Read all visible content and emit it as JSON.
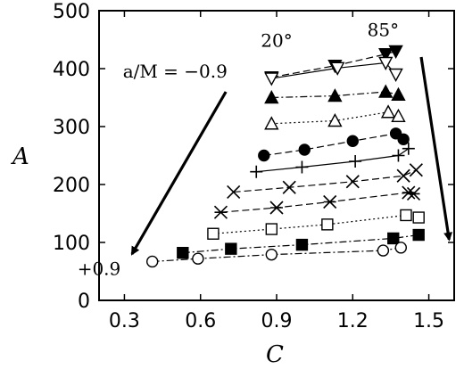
{
  "chart_data": {
    "type": "line",
    "title": "",
    "xlabel": "C",
    "ylabel": "A",
    "xlim": [
      0.2,
      1.6
    ],
    "ylim": [
      0,
      500
    ],
    "xticks": [
      0.3,
      0.6,
      0.9,
      1.2,
      1.5
    ],
    "xtick_labels": [
      "0.3",
      "0.6",
      "0.9",
      "1.2",
      "1.5"
    ],
    "yticks": [
      0,
      100,
      200,
      300,
      400,
      500
    ],
    "ytick_labels": [
      "0",
      "100",
      "200",
      "300",
      "400",
      "500"
    ],
    "grid": false,
    "legend": "none",
    "series": [
      {
        "marker": "triangle-down-filled",
        "line": "dashed",
        "x": [
          0.88,
          1.13,
          1.33,
          1.37
        ],
        "y": [
          385,
          405,
          425,
          430
        ]
      },
      {
        "marker": "triangle-down-open",
        "line": "solid",
        "x": [
          0.88,
          1.14,
          1.33,
          1.37
        ],
        "y": [
          383,
          401,
          410,
          390
        ]
      },
      {
        "marker": "triangle-up-filled",
        "line": "dash-dot",
        "x": [
          0.88,
          1.13,
          1.33,
          1.38
        ],
        "y": [
          350,
          353,
          360,
          355
        ]
      },
      {
        "marker": "triangle-up-open",
        "line": "dotted",
        "x": [
          0.88,
          1.13,
          1.34,
          1.38
        ],
        "y": [
          305,
          310,
          325,
          318
        ]
      },
      {
        "marker": "circle-filled",
        "line": "dashed",
        "x": [
          0.85,
          1.01,
          1.2,
          1.37,
          1.4
        ],
        "y": [
          250,
          260,
          275,
          288,
          278
        ]
      },
      {
        "marker": "plus",
        "line": "solid",
        "x": [
          0.82,
          1.0,
          1.21,
          1.38,
          1.42
        ],
        "y": [
          222,
          230,
          240,
          250,
          262
        ]
      },
      {
        "marker": "x",
        "line": "dashed",
        "x": [
          0.73,
          0.95,
          1.2,
          1.4,
          1.45
        ],
        "y": [
          187,
          195,
          205,
          215,
          225
        ]
      },
      {
        "marker": "asterisk",
        "line": "dashed",
        "x": [
          0.68,
          0.9,
          1.11,
          1.42,
          1.44
        ],
        "y": [
          152,
          160,
          170,
          186,
          184
        ]
      },
      {
        "marker": "square-open",
        "line": "dotted",
        "x": [
          0.65,
          0.88,
          1.1,
          1.41,
          1.46
        ],
        "y": [
          115,
          123,
          131,
          147,
          143
        ]
      },
      {
        "marker": "square-filled",
        "line": "dash-dot",
        "x": [
          0.53,
          0.72,
          1.0,
          1.36,
          1.46
        ],
        "y": [
          82,
          89,
          96,
          107,
          113
        ]
      },
      {
        "marker": "circle-open",
        "line": "dash-dot",
        "x": [
          0.41,
          0.59,
          0.88,
          1.32,
          1.39
        ],
        "y": [
          67,
          72,
          79,
          86,
          91
        ]
      }
    ],
    "annotations": [
      {
        "text": "20°",
        "x": 0.9,
        "y": 438
      },
      {
        "text": "85°",
        "x": 1.32,
        "y": 456
      },
      {
        "text": "a/M = −0.9",
        "x": 0.5,
        "y": 385
      },
      {
        "text": "+0.9",
        "x": 0.2,
        "y": 44
      }
    ],
    "arrows": [
      {
        "from": [
          0.7,
          360
        ],
        "to": [
          0.33,
          80
        ]
      },
      {
        "from": [
          1.47,
          420
        ],
        "to": [
          1.58,
          105
        ]
      }
    ]
  }
}
